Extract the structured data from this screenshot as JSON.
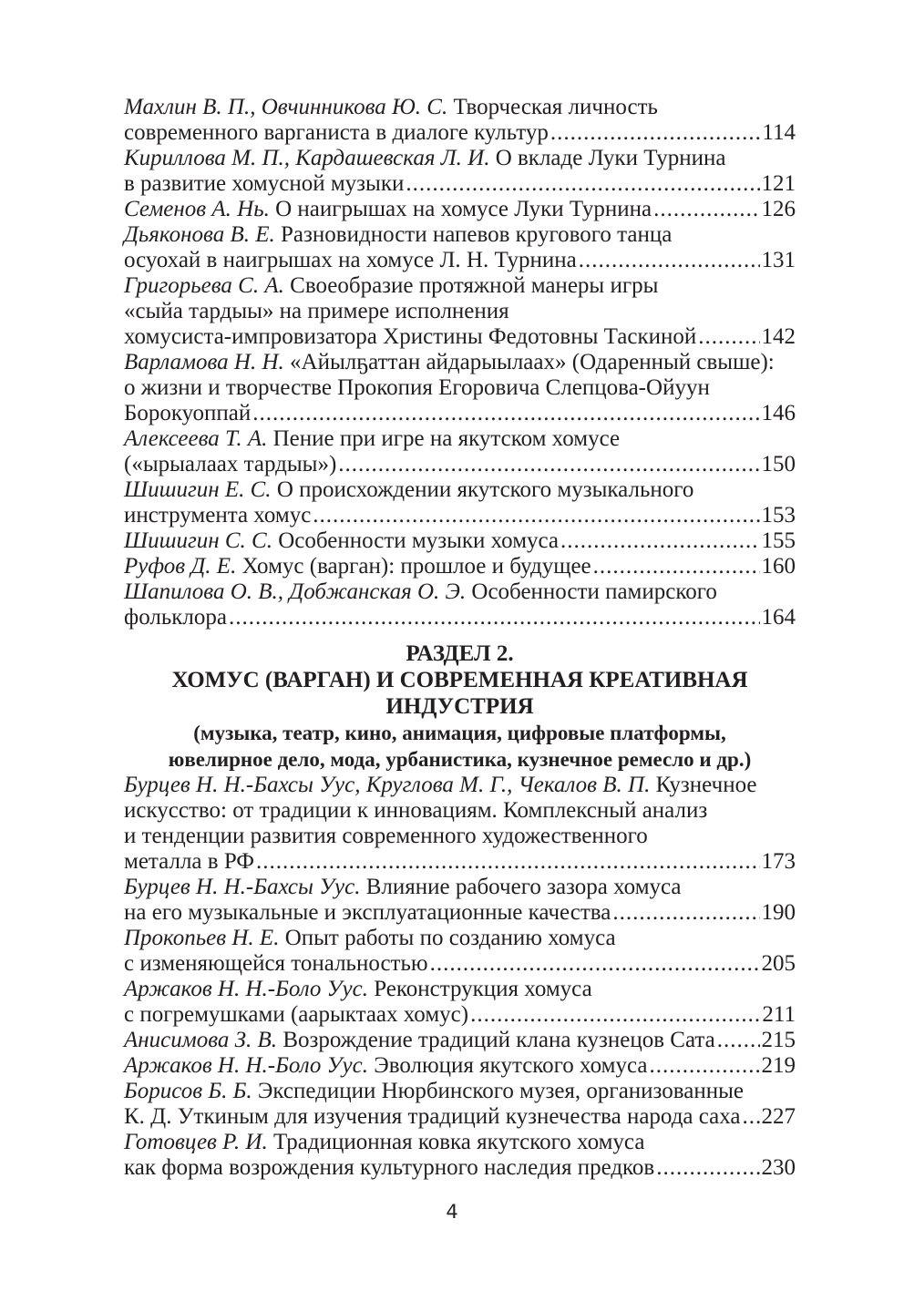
{
  "part1": [
    {
      "author": "Махлин В. П., Овчинникова Ю. С.",
      "lines": [
        "Творческая личность",
        "современного варганиста в диалоге культур"
      ],
      "page": "114"
    },
    {
      "author": "Кириллова М. П., Кардашевская Л. И.",
      "lines": [
        "О вкладе Луки Турнина",
        "в развитие хомусной музыки"
      ],
      "page": "121"
    },
    {
      "author": "Семенов А. Нь.",
      "lines": [
        "О наигрышах на хомусе Луки Турнина"
      ],
      "page": "126"
    },
    {
      "author": "Дьяконова В. Е.",
      "lines": [
        "Разновидности напевов кругового танца",
        "осуохай в наигрышах на хомусе Л. Н. Турнина"
      ],
      "page": "131"
    },
    {
      "author": "Григорьева С. А.",
      "lines": [
        "Своеобразие протяжной манеры игры",
        "«сыйа тардыы» на примере исполнения",
        "хомусиста-импровизатора Христины Федотовны Таскиной"
      ],
      "page": "142"
    },
    {
      "author": "Варламова Н. Н.",
      "lines": [
        "«Айылҕаттан айдарыылаах» (Одаренный свыше):",
        "о жизни и творчестве Прокопия Егоровича Слепцова-Ойуун",
        "Борокуоппай"
      ],
      "page": "146"
    },
    {
      "author": "Алексеева Т. А.",
      "lines": [
        "Пение при игре на якутском хомусе",
        "(«ырыалаах тардыы»)"
      ],
      "page": "150"
    },
    {
      "author": "Шишигин Е. С.",
      "lines": [
        "О происхождении якутского музыкального",
        "инструмента хомус"
      ],
      "page": "153"
    },
    {
      "author": "Шишигин С. С.",
      "lines": [
        "Особенности музыки хомуса"
      ],
      "page": "155"
    },
    {
      "author": "Руфов Д. Е.",
      "lines": [
        "Хомус (варган): прошлое и будущее"
      ],
      "page": "160"
    },
    {
      "author": "Шапилова О. В., Добжанская О. Э.",
      "lines": [
        "Особенности памирского",
        "фольклора"
      ],
      "page": "164"
    }
  ],
  "section": {
    "number": "РАЗДЕЛ 2.",
    "title_lines": [
      "ХОМУС (ВАРГАН) И СОВРЕМЕННАЯ КРЕАТИВНАЯ",
      "ИНДУСТРИЯ"
    ],
    "subtitle_lines": [
      "(музыка, театр, кино, анимация, цифровые платформы,",
      "ювелирное дело, мода, урбанистика, кузнечное ремесло и др.)"
    ]
  },
  "part2": [
    {
      "author": "Бурцев Н. Н.-Бахсы Уус, Круглова М. Г., Чекалов В. П.",
      "lines": [
        "Кузнечное",
        "искусство: от традиции к инновациям. Комплексный анализ",
        "и тенденции развития современного художественного",
        "металла в РФ"
      ],
      "page": "173"
    },
    {
      "author": "Бурцев Н. Н.-Бахсы Уус.",
      "lines": [
        "Влияние рабочего зазора хомуса",
        "на его музыкальные и эксплуатационные качества"
      ],
      "page": "190"
    },
    {
      "author": "Прокопьев Н. Е.",
      "lines": [
        "Опыт работы по созданию хомуса",
        "с изменяющейся тональностью"
      ],
      "page": "205"
    },
    {
      "author": "Аржаков Н. Н.-Боло Уус.",
      "lines": [
        "Реконструкция хомуса",
        "с погремушками (аарыктаах хомус)"
      ],
      "page": "211"
    },
    {
      "author": "Анисимова З. В.",
      "lines": [
        "Возрождение традиций клана кузнецов Сата"
      ],
      "page": "215"
    },
    {
      "author": "Аржаков Н. Н.-Боло Уус.",
      "lines": [
        "Эволюция якутского хомуса"
      ],
      "page": "219"
    },
    {
      "author": "Борисов Б. Б.",
      "lines": [
        "Экспедиции Нюрбинского музея, организованные",
        "К. Д. Уткиным для изучения традиций кузнечества народа саха"
      ],
      "page": "227"
    },
    {
      "author": "Готовцев Р. И.",
      "lines": [
        "Традиционная ковка якутского хомуса",
        "как форма возрождения культурного наследия предков"
      ],
      "page": "230"
    }
  ],
  "page_number": "4"
}
